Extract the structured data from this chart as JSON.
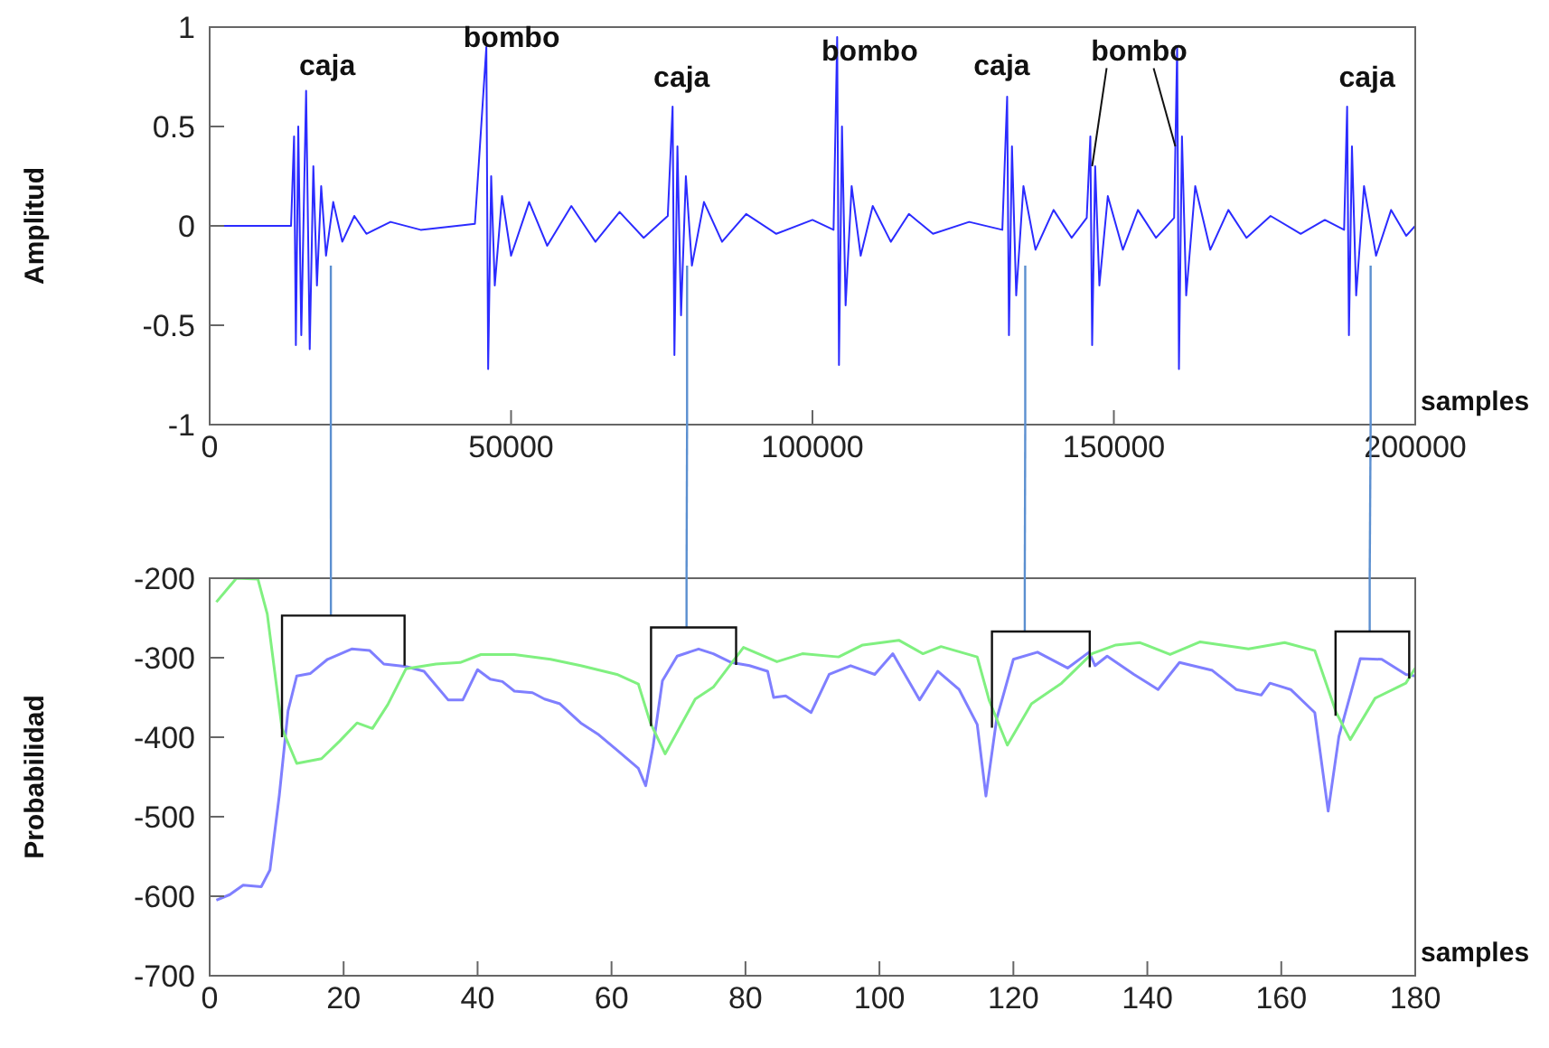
{
  "chart_data": [
    {
      "type": "line",
      "ylabel": "Amplitud",
      "xlabel": "samples",
      "color": "#2b2bff",
      "xlim": [
        0,
        200000
      ],
      "xticks": [
        0,
        50000,
        100000,
        150000,
        200000
      ],
      "ylim": [
        -1,
        1
      ],
      "yticks": [
        -1,
        -0.5,
        0,
        0.5,
        1
      ],
      "grid": false,
      "legend": false,
      "annotations": [
        "caja",
        "bombo",
        "caja",
        "bombo",
        "caja",
        {
          "text": "bombo",
          "x": 146400,
          "y": 0.3
        },
        "caja"
      ],
      "ref_lines": [
        {
          "axis": "x",
          "value": 20100,
          "color": "#5b8fd0"
        },
        {
          "axis": "x",
          "value": 79200,
          "color": "#5b8fd0"
        },
        {
          "axis": "x",
          "value": 135300,
          "color": "#5b8fd0"
        },
        {
          "axis": "x",
          "value": 192600,
          "color": "#5b8fd0"
        }
      ],
      "x": [
        0,
        13500,
        14000,
        14300,
        14700,
        15200,
        16000,
        16600,
        17200,
        17800,
        18500,
        19300,
        20500,
        22000,
        24000,
        26000,
        30000,
        35000,
        44000,
        45900,
        46200,
        46700,
        47300,
        48500,
        50000,
        53000,
        56000,
        60000,
        64000,
        68000,
        72000,
        76000,
        76800,
        77100,
        77600,
        78200,
        79000,
        80000,
        82000,
        85000,
        89000,
        94000,
        100000,
        103500,
        104100,
        104400,
        104900,
        105500,
        106500,
        108000,
        110000,
        113000,
        116000,
        120000,
        126000,
        131500,
        132300,
        132600,
        133100,
        133800,
        135000,
        137000,
        140000,
        143000,
        145500,
        146100,
        146400,
        146900,
        147600,
        149000,
        151500,
        154000,
        157000,
        160000,
        160500,
        160800,
        161300,
        162000,
        163500,
        166000,
        169000,
        172000,
        176000,
        181000,
        185000,
        188200,
        188700,
        189000,
        189500,
        190200,
        191500,
        193500,
        196000,
        198500,
        200000
      ],
      "values": [
        0,
        0,
        0.45,
        -0.6,
        0.5,
        -0.55,
        0.68,
        -0.62,
        0.3,
        -0.3,
        0.2,
        -0.15,
        0.12,
        -0.08,
        0.05,
        -0.04,
        0.02,
        -0.02,
        0.01,
        0.9,
        -0.72,
        0.25,
        -0.3,
        0.15,
        -0.15,
        0.12,
        -0.1,
        0.1,
        -0.08,
        0.07,
        -0.06,
        0.05,
        0.6,
        -0.65,
        0.4,
        -0.45,
        0.25,
        -0.2,
        0.12,
        -0.08,
        0.06,
        -0.04,
        0.03,
        -0.02,
        0.95,
        -0.7,
        0.5,
        -0.4,
        0.2,
        -0.15,
        0.1,
        -0.08,
        0.06,
        -0.04,
        0.02,
        -0.02,
        0.65,
        -0.55,
        0.4,
        -0.35,
        0.2,
        -0.12,
        0.08,
        -0.06,
        0.04,
        0.45,
        -0.6,
        0.3,
        -0.3,
        0.15,
        -0.12,
        0.08,
        -0.06,
        0.04,
        0.9,
        -0.72,
        0.45,
        -0.35,
        0.2,
        -0.12,
        0.08,
        -0.06,
        0.05,
        -0.04,
        0.03,
        -0.02,
        0.6,
        -0.55,
        0.4,
        -0.35,
        0.2,
        -0.15,
        0.08,
        -0.05,
        0
      ]
    },
    {
      "type": "line",
      "ylabel": "Probabilidad",
      "xlabel": "samples",
      "xlim": [
        0,
        180
      ],
      "xticks": [
        0,
        20,
        40,
        60,
        80,
        100,
        120,
        140,
        160,
        180
      ],
      "ylim": [
        -700,
        -200
      ],
      "yticks": [
        -700,
        -600,
        -500,
        -400,
        -300,
        -200
      ],
      "grid": false,
      "legend": false,
      "ref_lines": [
        {
          "axis": "x",
          "value": 18.1,
          "color": "#5b8fd0"
        },
        {
          "axis": "x",
          "value": 71.2,
          "color": "#5b8fd0"
        },
        {
          "axis": "x",
          "value": 121.7,
          "color": "#5b8fd0"
        },
        {
          "axis": "x",
          "value": 173.2,
          "color": "#5b8fd0"
        }
      ],
      "series": [
        {
          "color": "#7f7fff",
          "x": [
            1,
            3,
            5,
            7.7,
            9,
            10.4,
            11.7,
            13,
            15,
            17.6,
            21.2,
            23.9,
            26,
            29.3,
            32,
            35.6,
            37.8,
            40,
            41.9,
            43.7,
            45.5,
            48.2,
            50,
            52.3,
            55.4,
            58.1,
            60.8,
            64,
            65.1,
            66.2,
            67.6,
            69.8,
            73,
            75.2,
            77.9,
            80.6,
            83.3,
            84.2,
            86,
            89.8,
            92.5,
            95.7,
            99.3,
            102,
            106,
            108.7,
            111.9,
            114.6,
            115.9,
            117.5,
            120,
            123.6,
            128.1,
            131.3,
            132.2,
            134,
            138,
            141.6,
            144.8,
            149.7,
            153.3,
            157,
            158.3,
            161.4,
            165,
            167,
            168.6,
            171.8,
            175,
            178.6,
            180
          ],
          "values": [
            -605,
            -598,
            -586,
            -588,
            -567,
            -473,
            -367,
            -323,
            -320,
            -302,
            -289,
            -291,
            -308,
            -311,
            -317,
            -353,
            -353,
            -315,
            -327,
            -330,
            -342,
            -344,
            -352,
            -358,
            -382,
            -397,
            -416,
            -439,
            -461,
            -412,
            -329,
            -298,
            -289,
            -295,
            -306,
            -310,
            -317,
            -350,
            -348,
            -369,
            -321,
            -310,
            -321,
            -295,
            -353,
            -317,
            -340,
            -384,
            -474,
            -377,
            -302,
            -293,
            -313,
            -293,
            -310,
            -298,
            -321,
            -340,
            -306,
            -316,
            -340,
            -347,
            -332,
            -340,
            -369,
            -493,
            -399,
            -301,
            -302,
            -321,
            -323
          ]
        },
        {
          "color": "#80f080",
          "x": [
            1,
            4,
            7.2,
            8.6,
            10.8,
            13,
            16.7,
            19.4,
            22,
            24.3,
            26.6,
            29.3,
            33.8,
            37.4,
            40.5,
            45.5,
            50.9,
            55.4,
            60.8,
            64,
            65.8,
            68,
            72.5,
            75.2,
            79.7,
            84.7,
            88.5,
            93.9,
            97.5,
            102.9,
            106.5,
            109.2,
            114.6,
            116.4,
            119.1,
            122.7,
            127.2,
            131.7,
            135.3,
            138.9,
            143.4,
            147.9,
            155.1,
            160.5,
            165,
            168.2,
            170.3,
            174,
            178.6,
            180
          ],
          "values": [
            -230,
            -200,
            -201,
            -245,
            -389,
            -433,
            -427,
            -405,
            -382,
            -389,
            -359,
            -314,
            -308,
            -306,
            -296,
            -296,
            -302,
            -310,
            -321,
            -333,
            -382,
            -421,
            -352,
            -337,
            -287,
            -305,
            -295,
            -299,
            -284,
            -278,
            -295,
            -286,
            -299,
            -354,
            -410,
            -358,
            -332,
            -295,
            -284,
            -281,
            -296,
            -280,
            -289,
            -281,
            -291,
            -369,
            -403,
            -351,
            -332,
            -313
          ]
        }
      ]
    }
  ]
}
